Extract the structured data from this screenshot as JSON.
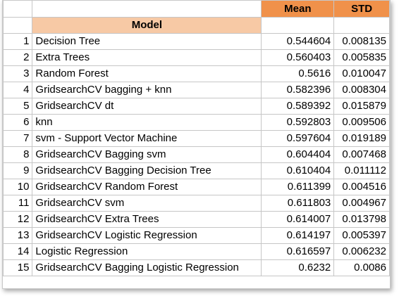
{
  "header": {
    "mean_label": "Mean",
    "std_label": "STD",
    "model_label": "Model"
  },
  "colors": {
    "header_orange": "#f0914a",
    "header_peach": "#f7c9a5"
  },
  "rows": [
    {
      "n": "1",
      "model": "Decision Tree",
      "mean": "0.544604",
      "std": "0.008135"
    },
    {
      "n": "2",
      "model": "Extra Trees",
      "mean": "0.560403",
      "std": "0.005835"
    },
    {
      "n": "3",
      "model": "Random Forest",
      "mean": "0.5616",
      "std": "0.010047"
    },
    {
      "n": "4",
      "model": "GridsearchCV bagging + knn",
      "mean": "0.582396",
      "std": "0.008304"
    },
    {
      "n": "5",
      "model": "GridsearchCV  dt",
      "mean": "0.589392",
      "std": "0.015879"
    },
    {
      "n": "6",
      "model": "knn",
      "mean": "0.592803",
      "std": "0.009506"
    },
    {
      "n": "7",
      "model": "svm - Support Vector Machine",
      "mean": "0.597604",
      "std": "0.019189"
    },
    {
      "n": "8",
      "model": "GridsearchCV  Bagging svm",
      "mean": "0.604404",
      "std": "0.007468"
    },
    {
      "n": "9",
      "model": "GridsearchCV  Bagging Decision Tree",
      "mean": "0.610404",
      "std": "0.011112"
    },
    {
      "n": "10",
      "model": "GridsearchCV  Random Forest",
      "mean": "0.611399",
      "std": "0.004516"
    },
    {
      "n": "11",
      "model": "GridsearchCV  svm",
      "mean": "0.611803",
      "std": "0.004967"
    },
    {
      "n": "12",
      "model": "GridsearchCV  Extra Trees",
      "mean": "0.614007",
      "std": "0.013798"
    },
    {
      "n": "13",
      "model": "GridsearchCV  Logistic Regression",
      "mean": "0.614197",
      "std": "0.005397"
    },
    {
      "n": "14",
      "model": "Logistic Regression",
      "mean": "0.616597",
      "std": "0.006232"
    },
    {
      "n": "15",
      "model": "GridsearchCV  Bagging Logistic Regression",
      "mean": "0.6232",
      "std": "0.0086"
    }
  ]
}
